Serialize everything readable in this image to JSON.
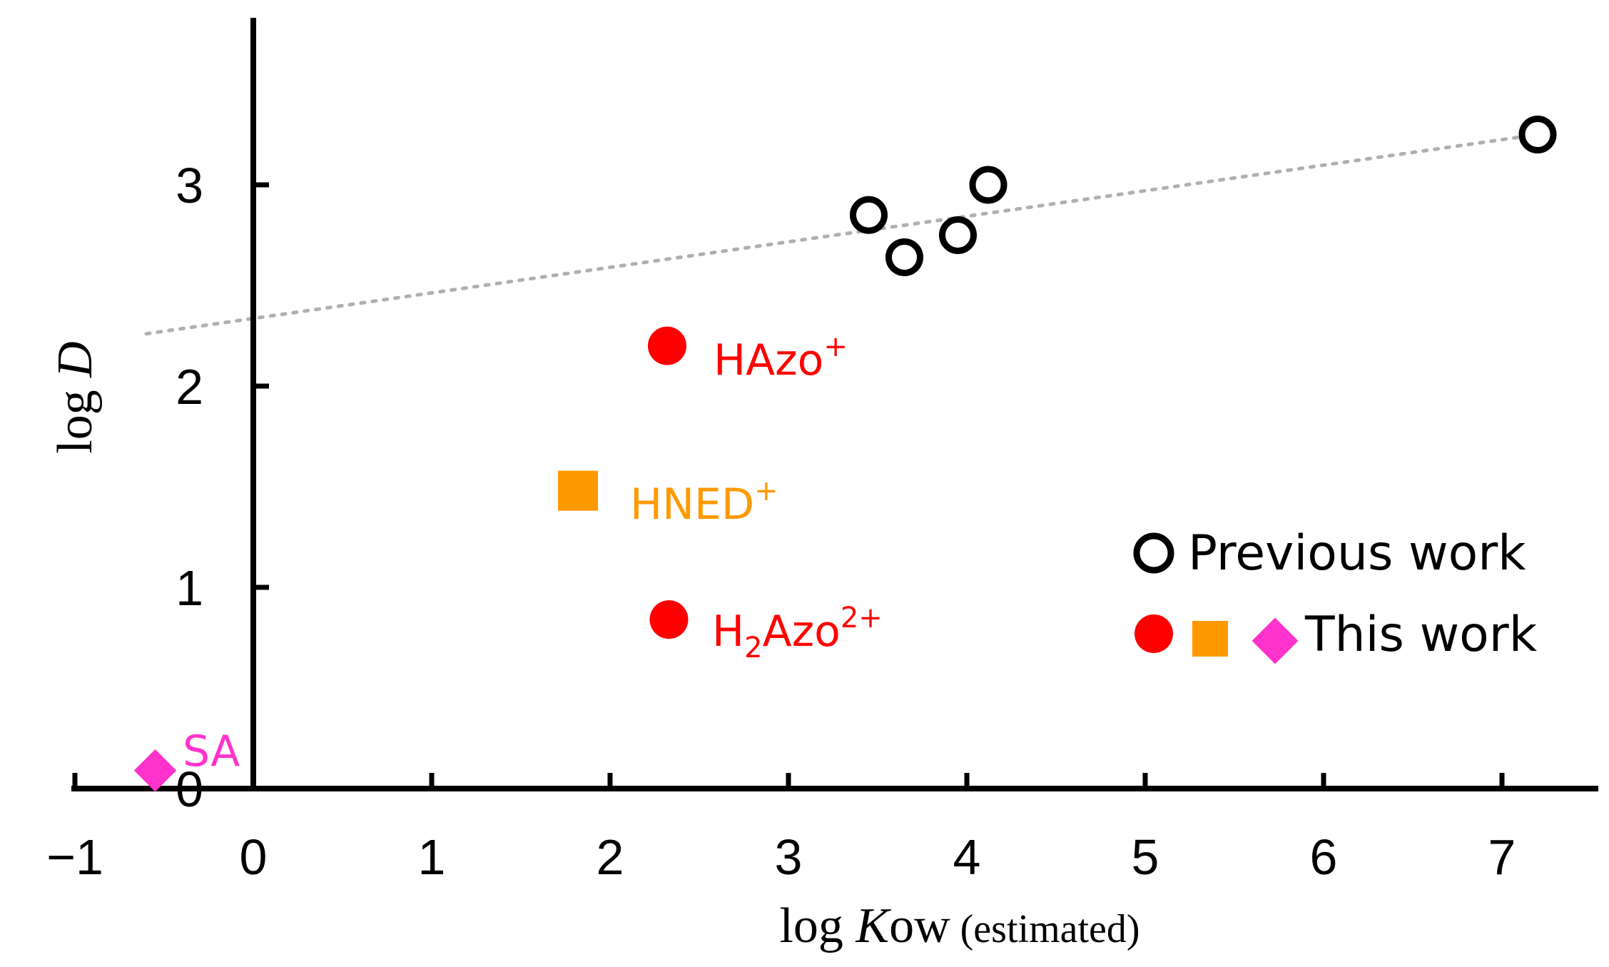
{
  "chart_data": {
    "type": "scatter",
    "title": "",
    "xlabel": {
      "prefix": "log ",
      "var": "K",
      "sub": "ow",
      "suffix": " (estimated)"
    },
    "ylabel": {
      "prefix": "log ",
      "var": "D"
    },
    "xlim": [
      -1,
      7.5
    ],
    "ylim": [
      0,
      3.8
    ],
    "xticks": [
      -1,
      0,
      1,
      2,
      3,
      4,
      5,
      6,
      7
    ],
    "xtick_labels": [
      "−1",
      "0",
      "1",
      "2",
      "3",
      "4",
      "5",
      "6",
      "7"
    ],
    "yticks": [
      0,
      1,
      2,
      3
    ],
    "ytick_labels": [
      "0",
      "1",
      "2",
      "3"
    ],
    "grid": false,
    "colors": {
      "red": "#ff0000",
      "orange": "#ff9900",
      "magenta": "#ff33cc",
      "black": "#000000",
      "trend": "#b0b0b0"
    },
    "trendline": {
      "x": [
        -0.6,
        7.2
      ],
      "y": [
        2.26,
        3.25
      ],
      "style": "dotted"
    },
    "series": [
      {
        "name": "Previous work",
        "marker": "open-circle",
        "color": "#000000",
        "points": [
          {
            "x": 3.45,
            "y": 2.85
          },
          {
            "x": 3.65,
            "y": 2.64
          },
          {
            "x": 3.95,
            "y": 2.75
          },
          {
            "x": 4.12,
            "y": 3.0
          },
          {
            "x": 7.2,
            "y": 3.25
          }
        ]
      },
      {
        "name": "HAzo+",
        "marker": "filled-circle",
        "color": "#ff0000",
        "points": [
          {
            "x": 2.32,
            "y": 2.2
          }
        ]
      },
      {
        "name": "H2Azo2+",
        "marker": "filled-circle",
        "color": "#ff0000",
        "points": [
          {
            "x": 2.33,
            "y": 0.84
          }
        ]
      },
      {
        "name": "HNED+",
        "marker": "filled-square",
        "color": "#ff9900",
        "points": [
          {
            "x": 1.82,
            "y": 1.48
          }
        ]
      },
      {
        "name": "SA",
        "marker": "filled-diamond",
        "color": "#ff33cc",
        "points": [
          {
            "x": -0.55,
            "y": 0.09
          }
        ]
      }
    ],
    "annotations": {
      "hazo": {
        "base": "HAzo",
        "sup": "+",
        "color": "#ff0000"
      },
      "h2azo": {
        "base": "H",
        "sub": "2",
        "rest": "Azo",
        "sup": "2+",
        "color": "#ff0000"
      },
      "hned": {
        "base": "HNED",
        "sup": "+",
        "color": "#ff9900"
      },
      "sa": {
        "text": "SA",
        "color": "#ff33cc"
      }
    },
    "legend": {
      "position": "bottom-right",
      "entries": [
        {
          "label": "Previous work",
          "markers": [
            "open-circle"
          ]
        },
        {
          "label": "This work",
          "markers": [
            "filled-circle",
            "filled-square",
            "filled-diamond"
          ]
        }
      ]
    }
  }
}
